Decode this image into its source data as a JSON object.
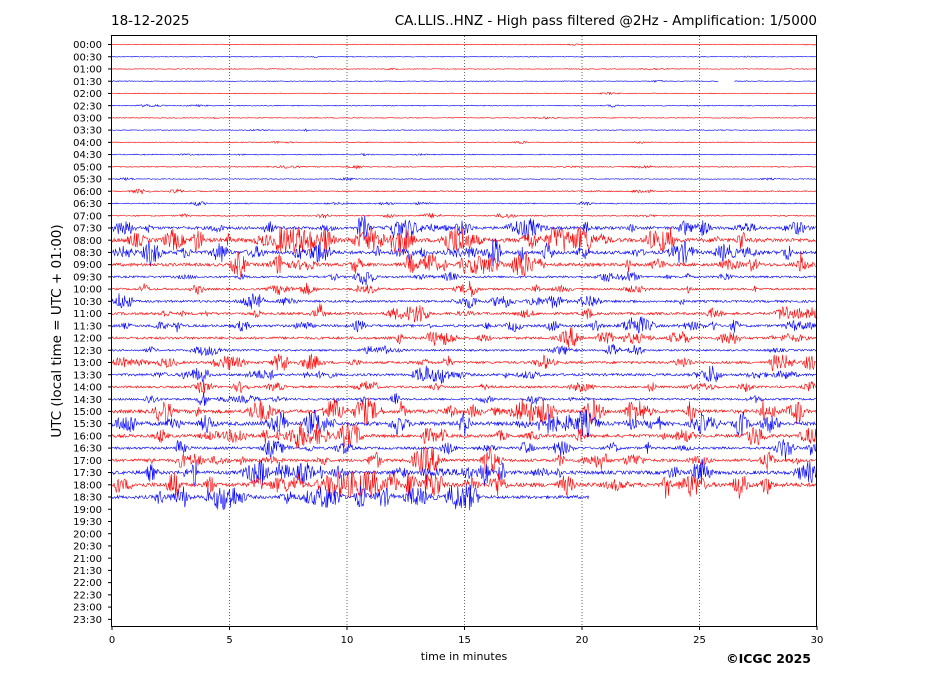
{
  "header": {
    "date": "18-12-2025",
    "title": "CA.LLIS..HNZ - High pass filtered @2Hz - Amplification: 1/5000"
  },
  "footer": {
    "copyright": "©ICGC 2025"
  },
  "chart_data": {
    "type": "line",
    "title": "CA.LLIS..HNZ - High pass filtered @2Hz - Amplification: 1/5000",
    "xlabel": "time in minutes",
    "ylabel": "UTC (local time = UTC + 01:00)",
    "xlim": [
      0,
      30
    ],
    "xticks": [
      0,
      5,
      10,
      15,
      20,
      25,
      30
    ],
    "grid": "vertical dotted lines at 5-minute marks",
    "trace_colors": [
      "#ff0000",
      "#0000ff"
    ],
    "rows": [
      "00:00",
      "00:30",
      "01:00",
      "01:30",
      "02:00",
      "02:30",
      "03:00",
      "03:30",
      "04:00",
      "04:30",
      "05:00",
      "05:30",
      "06:00",
      "06:30",
      "07:00",
      "07:30",
      "08:00",
      "08:30",
      "09:00",
      "09:30",
      "10:00",
      "10:30",
      "11:00",
      "11:30",
      "12:00",
      "12:30",
      "13:00",
      "13:30",
      "14:00",
      "14:30",
      "15:00",
      "15:30",
      "16:00",
      "16:30",
      "17:00",
      "17:30",
      "18:00",
      "18:30",
      "19:00",
      "19:30",
      "20:00",
      "20:30",
      "21:00",
      "21:30",
      "22:00",
      "22:30",
      "23:00",
      "23:30"
    ],
    "series": [
      {
        "name": "00:00",
        "color": "#ff0000",
        "activity": 0.05
      },
      {
        "name": "00:30",
        "color": "#0000ff",
        "activity": 0.05
      },
      {
        "name": "01:00",
        "color": "#ff0000",
        "activity": 0.05
      },
      {
        "name": "01:30",
        "color": "#0000ff",
        "activity": 0.05,
        "end_minute": 30,
        "gap": [
          25.8,
          26.5
        ]
      },
      {
        "name": "02:00",
        "color": "#ff0000",
        "activity": 0.05
      },
      {
        "name": "02:30",
        "color": "#0000ff",
        "activity": 0.08
      },
      {
        "name": "03:00",
        "color": "#ff0000",
        "activity": 0.06
      },
      {
        "name": "03:30",
        "color": "#0000ff",
        "activity": 0.06
      },
      {
        "name": "04:00",
        "color": "#ff0000",
        "activity": 0.08
      },
      {
        "name": "04:30",
        "color": "#0000ff",
        "activity": 0.1
      },
      {
        "name": "05:00",
        "color": "#ff0000",
        "activity": 0.1
      },
      {
        "name": "05:30",
        "color": "#0000ff",
        "activity": 0.08
      },
      {
        "name": "06:00",
        "color": "#ff0000",
        "activity": 0.12
      },
      {
        "name": "06:30",
        "color": "#0000ff",
        "activity": 0.12
      },
      {
        "name": "07:00",
        "color": "#ff0000",
        "activity": 0.15
      },
      {
        "name": "07:30",
        "color": "#0000ff",
        "activity": 0.55
      },
      {
        "name": "08:00",
        "color": "#ff0000",
        "activity": 0.8
      },
      {
        "name": "08:30",
        "color": "#0000ff",
        "activity": 0.65
      },
      {
        "name": "09:00",
        "color": "#ff0000",
        "activity": 0.6
      },
      {
        "name": "09:30",
        "color": "#0000ff",
        "activity": 0.35
      },
      {
        "name": "10:00",
        "color": "#ff0000",
        "activity": 0.35
      },
      {
        "name": "10:30",
        "color": "#0000ff",
        "activity": 0.4
      },
      {
        "name": "11:00",
        "color": "#ff0000",
        "activity": 0.45
      },
      {
        "name": "11:30",
        "color": "#0000ff",
        "activity": 0.45
      },
      {
        "name": "12:00",
        "color": "#ff0000",
        "activity": 0.45
      },
      {
        "name": "12:30",
        "color": "#0000ff",
        "activity": 0.3
      },
      {
        "name": "13:00",
        "color": "#ff0000",
        "activity": 0.45
      },
      {
        "name": "13:30",
        "color": "#0000ff",
        "activity": 0.45
      },
      {
        "name": "14:00",
        "color": "#ff0000",
        "activity": 0.35
      },
      {
        "name": "14:30",
        "color": "#0000ff",
        "activity": 0.35
      },
      {
        "name": "15:00",
        "color": "#ff0000",
        "activity": 0.7
      },
      {
        "name": "15:30",
        "color": "#0000ff",
        "activity": 0.75
      },
      {
        "name": "16:00",
        "color": "#ff0000",
        "activity": 0.6
      },
      {
        "name": "16:30",
        "color": "#0000ff",
        "activity": 0.45
      },
      {
        "name": "17:00",
        "color": "#ff0000",
        "activity": 0.55
      },
      {
        "name": "17:30",
        "color": "#0000ff",
        "activity": 0.7
      },
      {
        "name": "18:00",
        "color": "#ff0000",
        "activity": 0.85,
        "end_minute": 30
      },
      {
        "name": "18:30",
        "color": "#0000ff",
        "activity": 0.6,
        "end_minute": 20.3
      }
    ]
  }
}
